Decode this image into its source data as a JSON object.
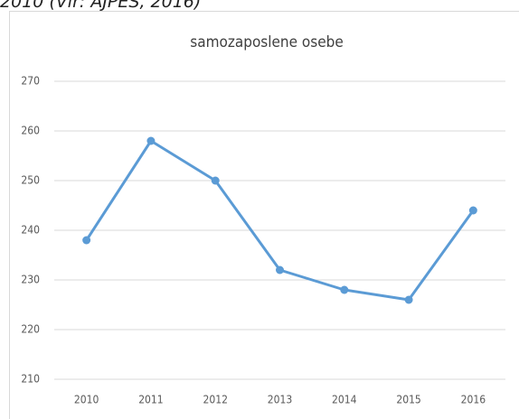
{
  "caption": "2010 (Vir: AJPES, 2016)",
  "chart_data": {
    "type": "line",
    "title": "samozaposlene osebe",
    "categories": [
      "2010",
      "2011",
      "2012",
      "2013",
      "2014",
      "2015",
      "2016"
    ],
    "series": [
      {
        "name": "samozaposlene osebe",
        "color": "#5b9bd5",
        "values": [
          238,
          258,
          250,
          232,
          228,
          226,
          244
        ]
      }
    ],
    "ylim": [
      210,
      270
    ],
    "yticks": [
      210,
      220,
      230,
      240,
      250,
      260,
      270
    ],
    "grid": true
  }
}
